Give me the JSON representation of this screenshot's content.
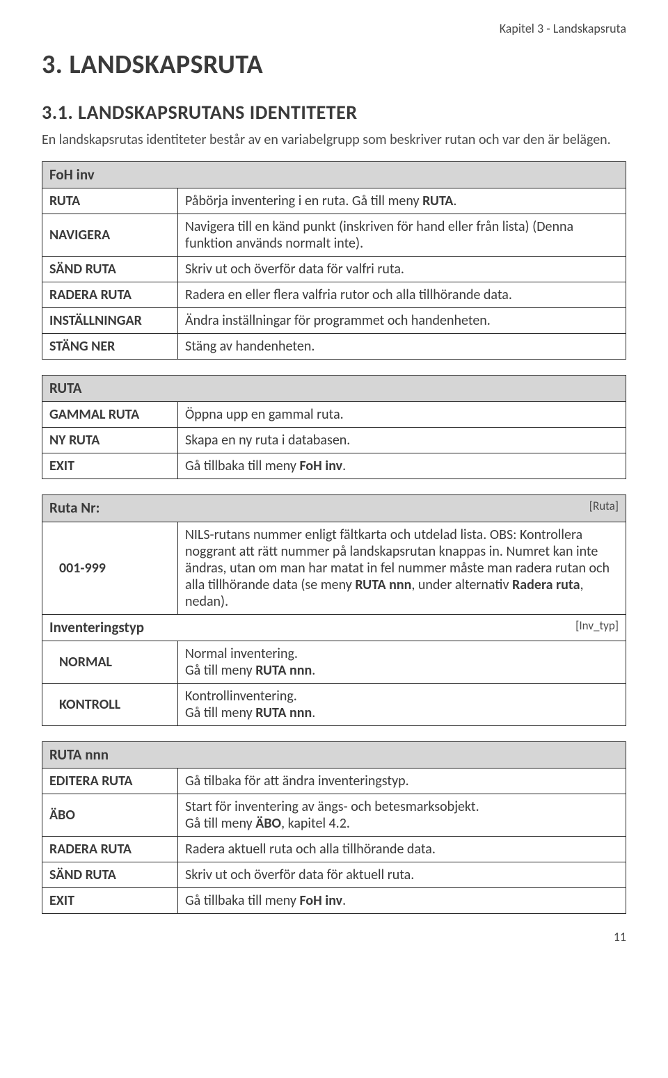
{
  "header": "Kapitel 3 - Landskapsruta",
  "h1": "3. LANDSKAPSRUTA",
  "h2": "3.1. LANDSKAPSRUTANS IDENTITETER",
  "intro": "En landskapsrutas identiteter består av en variabelgrupp som beskriver rutan och var den är belägen.",
  "page_number": "11",
  "tables": [
    {
      "section": "FoH inv",
      "section_tag": "",
      "rows": [
        {
          "key": "RUTA",
          "desc": "Påbörja inventering i en ruta. Gå till meny <b>RUTA</b>."
        },
        {
          "key": "NAVIGERA",
          "desc": "Navigera till en känd punkt (inskriven för hand eller från lista) (Denna funktion används normalt inte)."
        },
        {
          "key": "SÄND RUTA",
          "desc": "Skriv ut och överför data för valfri ruta."
        },
        {
          "key": "RADERA RUTA",
          "desc": "Radera en eller flera valfria rutor och alla tillhörande data."
        },
        {
          "key": "INSTÄLLNINGAR",
          "desc": "Ändra inställningar för programmet och handenheten."
        },
        {
          "key": "STÄNG NER",
          "desc": "Stäng av handenheten."
        }
      ]
    },
    {
      "section": "RUTA",
      "section_tag": "",
      "rows": [
        {
          "key": "GAMMAL RUTA",
          "desc": "Öppna upp en gammal ruta."
        },
        {
          "key": "NY RUTA",
          "desc": "Skapa en ny ruta i databasen."
        },
        {
          "key": "EXIT",
          "desc": "Gå tillbaka till meny <b>FoH inv</b>."
        }
      ]
    },
    {
      "section": "Ruta Nr:",
      "section_tag": "[Ruta]",
      "rows": [
        {
          "key": "001-999",
          "indent": true,
          "desc": "NILS-rutans nummer enligt fältkarta och utdelad lista. OBS: Kontrollera noggrant att rätt nummer på landskapsrutan knappas in. Numret kan inte ändras, utan om man har matat in fel nummer måste man radera rutan och alla tillhörande data (se meny <b>RUTA nnn</b>, under alternativ <b>Radera ruta</b>, nedan)."
        }
      ],
      "subsections": [
        {
          "title": "Inventeringstyp",
          "tag": "[Inv_typ]",
          "rows": [
            {
              "key": "NORMAL",
              "indent": true,
              "desc": "Normal inventering.<br>Gå till meny <b>RUTA nnn</b>."
            },
            {
              "key": "KONTROLL",
              "indent": true,
              "desc": "Kontrollinventering.<br>Gå till meny <b>RUTA nnn</b>."
            }
          ]
        }
      ]
    },
    {
      "section": "RUTA nnn",
      "section_tag": "",
      "rows": [
        {
          "key": "EDITERA RUTA",
          "desc": "Gå tilbaka för att ändra inventeringstyp."
        },
        {
          "key": "ÄBO",
          "desc": "Start för inventering av ängs- och betesmarksobjekt.<br>Gå till meny <b>ÄBO</b>, kapitel 4.2."
        },
        {
          "key": "RADERA RUTA",
          "desc": "Radera aktuell ruta och alla tillhörande data."
        },
        {
          "key": "SÄND RUTA",
          "desc": "Skriv ut och överför data för aktuell ruta."
        },
        {
          "key": "EXIT",
          "desc": "Gå tillbaka till meny <b>FoH inv</b>."
        }
      ]
    }
  ]
}
